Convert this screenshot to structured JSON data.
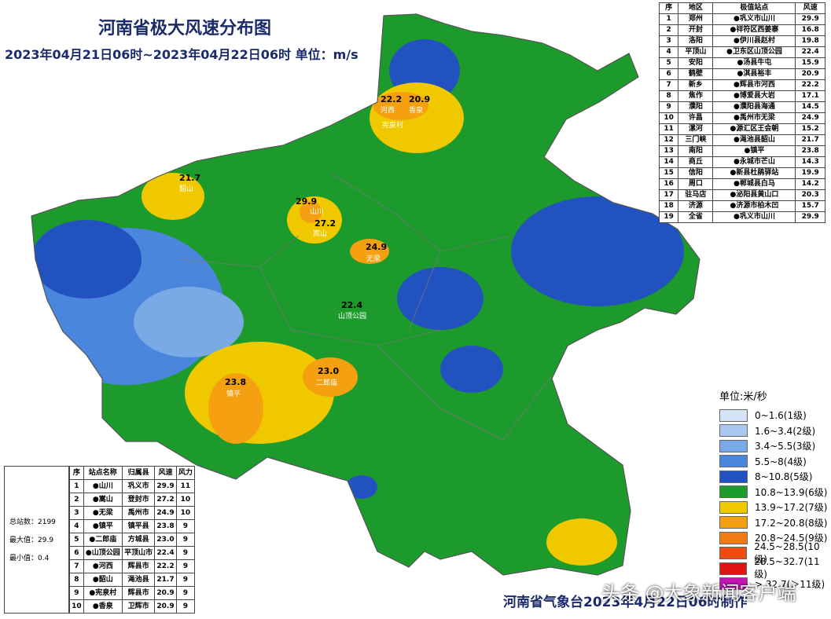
{
  "header": {
    "title": "河南省极大风速分布图",
    "subtitle": "2023年04月21日06时~2023年04月22日06时 单位：m/s"
  },
  "city_table": {
    "columns": [
      "序",
      "地区",
      "极值站点",
      "风速"
    ],
    "rows": [
      [
        "1",
        "郑州",
        "●巩义市山川",
        "29.9"
      ],
      [
        "2",
        "开封",
        "●祥符区西姜寨",
        "16.8"
      ],
      [
        "3",
        "洛阳",
        "●伊川县赵村",
        "19.8"
      ],
      [
        "4",
        "平顶山",
        "●卫东区山顶公园",
        "22.4"
      ],
      [
        "5",
        "安阳",
        "●汤县牛屯",
        "15.9"
      ],
      [
        "6",
        "鹤壁",
        "●淇县裕丰",
        "20.9"
      ],
      [
        "7",
        "新乡",
        "●辉县市河西",
        "22.2"
      ],
      [
        "8",
        "焦作",
        "●博爱县大岩",
        "17.1"
      ],
      [
        "9",
        "濮阳",
        "●濮阳县海通",
        "14.5"
      ],
      [
        "10",
        "许昌",
        "●禹州市无梁",
        "24.9"
      ],
      [
        "11",
        "漯河",
        "●源汇区王会朝",
        "15.2"
      ],
      [
        "12",
        "三门峡",
        "●渑池县韶山",
        "21.7"
      ],
      [
        "13",
        "南阳",
        "●镇平",
        "23.8"
      ],
      [
        "14",
        "商丘",
        "●永城市芒山",
        "14.3"
      ],
      [
        "15",
        "信阳",
        "●新县杜鹃驿站",
        "19.9"
      ],
      [
        "16",
        "周口",
        "●郸城县白马",
        "14.2"
      ],
      [
        "17",
        "驻马店",
        "●泌阳县黄山口",
        "20.3"
      ],
      [
        "18",
        "济源",
        "●济源市柏木凹",
        "15.7"
      ],
      [
        "19",
        "全省",
        "●巩义市山川",
        "29.9"
      ]
    ]
  },
  "station_table": {
    "columns": [
      "序",
      "站点名称",
      "归属县",
      "风速",
      "风力"
    ],
    "rows": [
      [
        "1",
        "●山川",
        "巩义市",
        "29.9",
        "11"
      ],
      [
        "2",
        "●嵩山",
        "登封市",
        "27.2",
        "10"
      ],
      [
        "3",
        "●无梁",
        "禹州市",
        "24.9",
        "10"
      ],
      [
        "4",
        "●镇平",
        "镇平县",
        "23.8",
        "9"
      ],
      [
        "5",
        "●二郎庙",
        "方城县",
        "23.0",
        "9"
      ],
      [
        "6",
        "●山顶公园",
        "平顶山市",
        "22.4",
        "9"
      ],
      [
        "7",
        "●河西",
        "辉县市",
        "22.2",
        "9"
      ],
      [
        "8",
        "●韶山",
        "渑池县",
        "21.7",
        "9"
      ],
      [
        "9",
        "●宪泉村",
        "辉县市",
        "20.9",
        "9"
      ],
      [
        "10",
        "●香泉",
        "卫辉市",
        "20.9",
        "9"
      ]
    ]
  },
  "stats": [
    "总站数：2199",
    "最大值：29.9",
    "最小值：0.4"
  ],
  "legend": {
    "title": "单位:米/秒",
    "items": [
      {
        "label": "0~1.6(1级)",
        "color": "#d6e4f7"
      },
      {
        "label": "1.6~3.4(2级)",
        "color": "#a9c8f0"
      },
      {
        "label": "3.4~5.5(3级)",
        "color": "#7aaae6"
      },
      {
        "label": "5.5~8(4级)",
        "color": "#4a86dc"
      },
      {
        "label": "8~10.8(5级)",
        "color": "#2252c0"
      },
      {
        "label": "10.8~13.9(6级)",
        "color": "#1c9a2c"
      },
      {
        "label": "13.9~17.2(7级)",
        "color": "#f0c800"
      },
      {
        "label": "17.2~20.8(8级)",
        "color": "#f5a010"
      },
      {
        "label": "20.8~24.5(9级)",
        "color": "#f27a12"
      },
      {
        "label": "24.5~28.5(10级)",
        "color": "#f04a10"
      },
      {
        "label": "28.5~32.7(11级)",
        "color": "#e01414"
      },
      {
        "label": "> 32.7(＞11级)",
        "color": "#c414b4"
      }
    ]
  },
  "map_labels": [
    "29.9",
    "山川",
    "27.2",
    "嵩山",
    "24.9",
    "无梁",
    "22.4",
    "山顶公园",
    "23.8",
    "镇平",
    "23.0",
    "二郎庙",
    "22.2",
    "河西",
    "20.9",
    "香泉",
    "21.7",
    "韶山",
    "宪泉村"
  ],
  "footer": "河南省气象台2023年4月22日06时制作",
  "watermark": "头条 @大象新闻客户端"
}
